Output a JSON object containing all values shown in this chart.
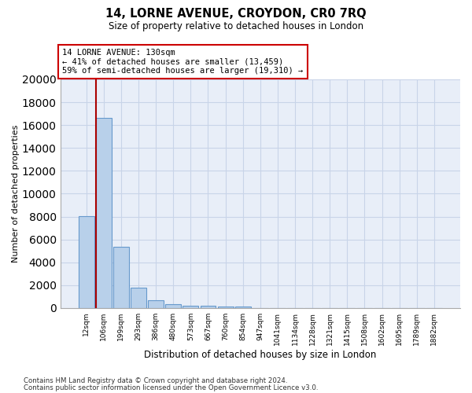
{
  "title": "14, LORNE AVENUE, CROYDON, CR0 7RQ",
  "subtitle": "Size of property relative to detached houses in London",
  "xlabel": "Distribution of detached houses by size in London",
  "ylabel": "Number of detached properties",
  "categories": [
    "12sqm",
    "106sqm",
    "199sqm",
    "293sqm",
    "386sqm",
    "480sqm",
    "573sqm",
    "667sqm",
    "760sqm",
    "854sqm",
    "947sqm",
    "1041sqm",
    "1134sqm",
    "1228sqm",
    "1321sqm",
    "1415sqm",
    "1508sqm",
    "1602sqm",
    "1695sqm",
    "1789sqm",
    "1882sqm"
  ],
  "values": [
    8050,
    16650,
    5350,
    1750,
    700,
    330,
    210,
    185,
    150,
    110,
    0,
    0,
    0,
    0,
    0,
    0,
    0,
    0,
    0,
    0,
    0
  ],
  "bar_color": "#b8d0ea",
  "bar_edge_color": "#6699cc",
  "property_line_color": "#aa0000",
  "annotation_text": "14 LORNE AVENUE: 130sqm\n← 41% of detached houses are smaller (13,459)\n59% of semi-detached houses are larger (19,310) →",
  "annotation_box_color": "#ffffff",
  "annotation_box_edge_color": "#cc0000",
  "ylim": [
    0,
    20000
  ],
  "yticks": [
    0,
    2000,
    4000,
    6000,
    8000,
    10000,
    12000,
    14000,
    16000,
    18000,
    20000
  ],
  "grid_color": "#c8d4e8",
  "background_color": "#e8eef8",
  "footer_line1": "Contains HM Land Registry data © Crown copyright and database right 2024.",
  "footer_line2": "Contains public sector information licensed under the Open Government Licence v3.0."
}
